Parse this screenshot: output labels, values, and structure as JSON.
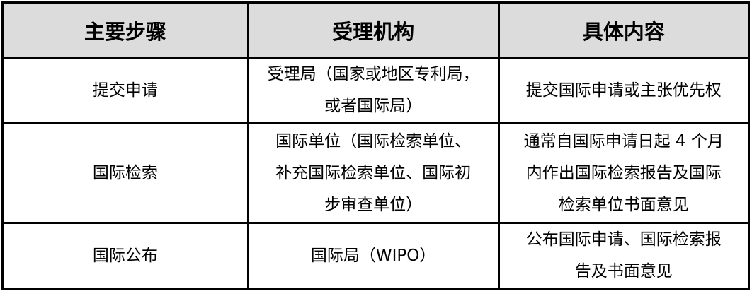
{
  "headers": [
    "主要步骤",
    "受理机构",
    "具体内容"
  ],
  "rows": [
    {
      "step": "提交申请",
      "agency": [
        "受理局（国家或地区专利局，",
        "或者国际局）"
      ],
      "content": [
        "提交国际申请或主张优先权"
      ]
    },
    {
      "step": "国际检索",
      "agency": [
        "国际单位（国际检索单位、",
        "补充国际检索单位、国际初",
        "步审查单位）"
      ],
      "content": [
        "通常自国际申请日起 4 个月",
        "内作出国际检索报告及国际",
        "检索单位书面意见"
      ]
    },
    {
      "step": "国际公布",
      "agency": [
        "国际局（WIPO）"
      ],
      "content": [
        "公布国际申请、国际检索报",
        "告及书面意见"
      ]
    }
  ],
  "colors": {
    "header_bg": "#dcdcdc",
    "border": "#000000"
  }
}
